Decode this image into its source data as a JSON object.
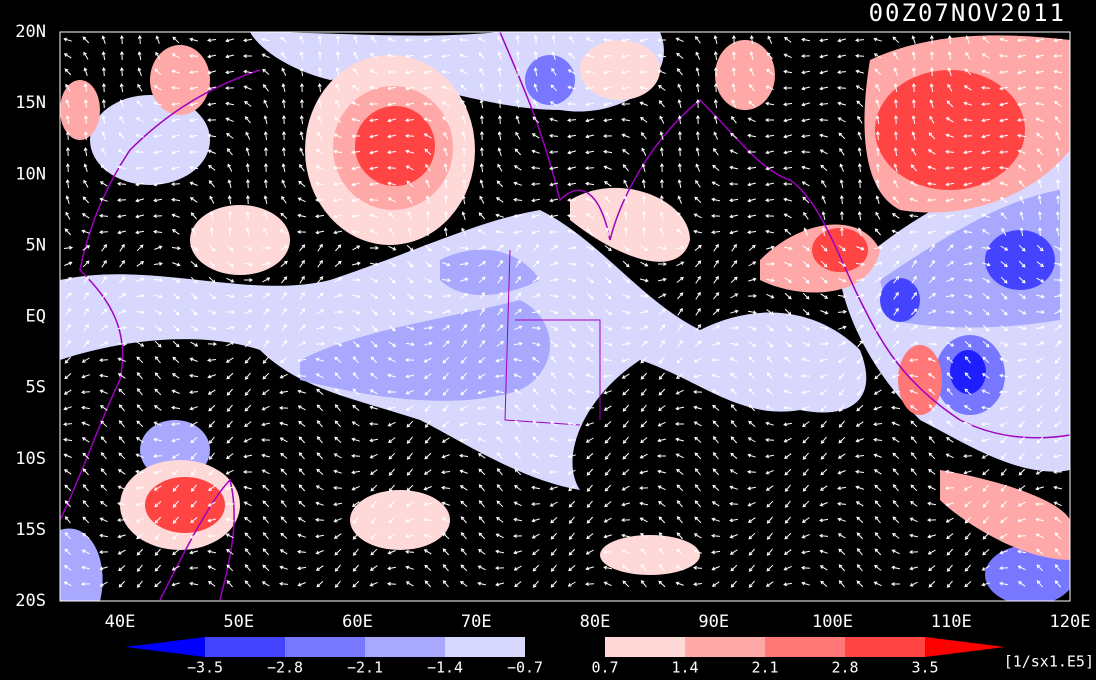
{
  "title": "00Z07NOV2011",
  "lat_labels": [
    "20N",
    "15N",
    "10N",
    "5N",
    "EQ",
    "5S",
    "10S",
    "15S",
    "20S"
  ],
  "lon_labels": [
    "40E",
    "50E",
    "60E",
    "70E",
    "80E",
    "90E",
    "100E",
    "110E",
    "120E"
  ],
  "colorbar": {
    "labels": [
      "−3.5",
      "−2.8",
      "−2.1",
      "−1.4",
      "−0.7",
      "0.7",
      "1.4",
      "2.1",
      "2.8",
      "3.5"
    ],
    "unit": "[1/sx1.E5]"
  }
}
